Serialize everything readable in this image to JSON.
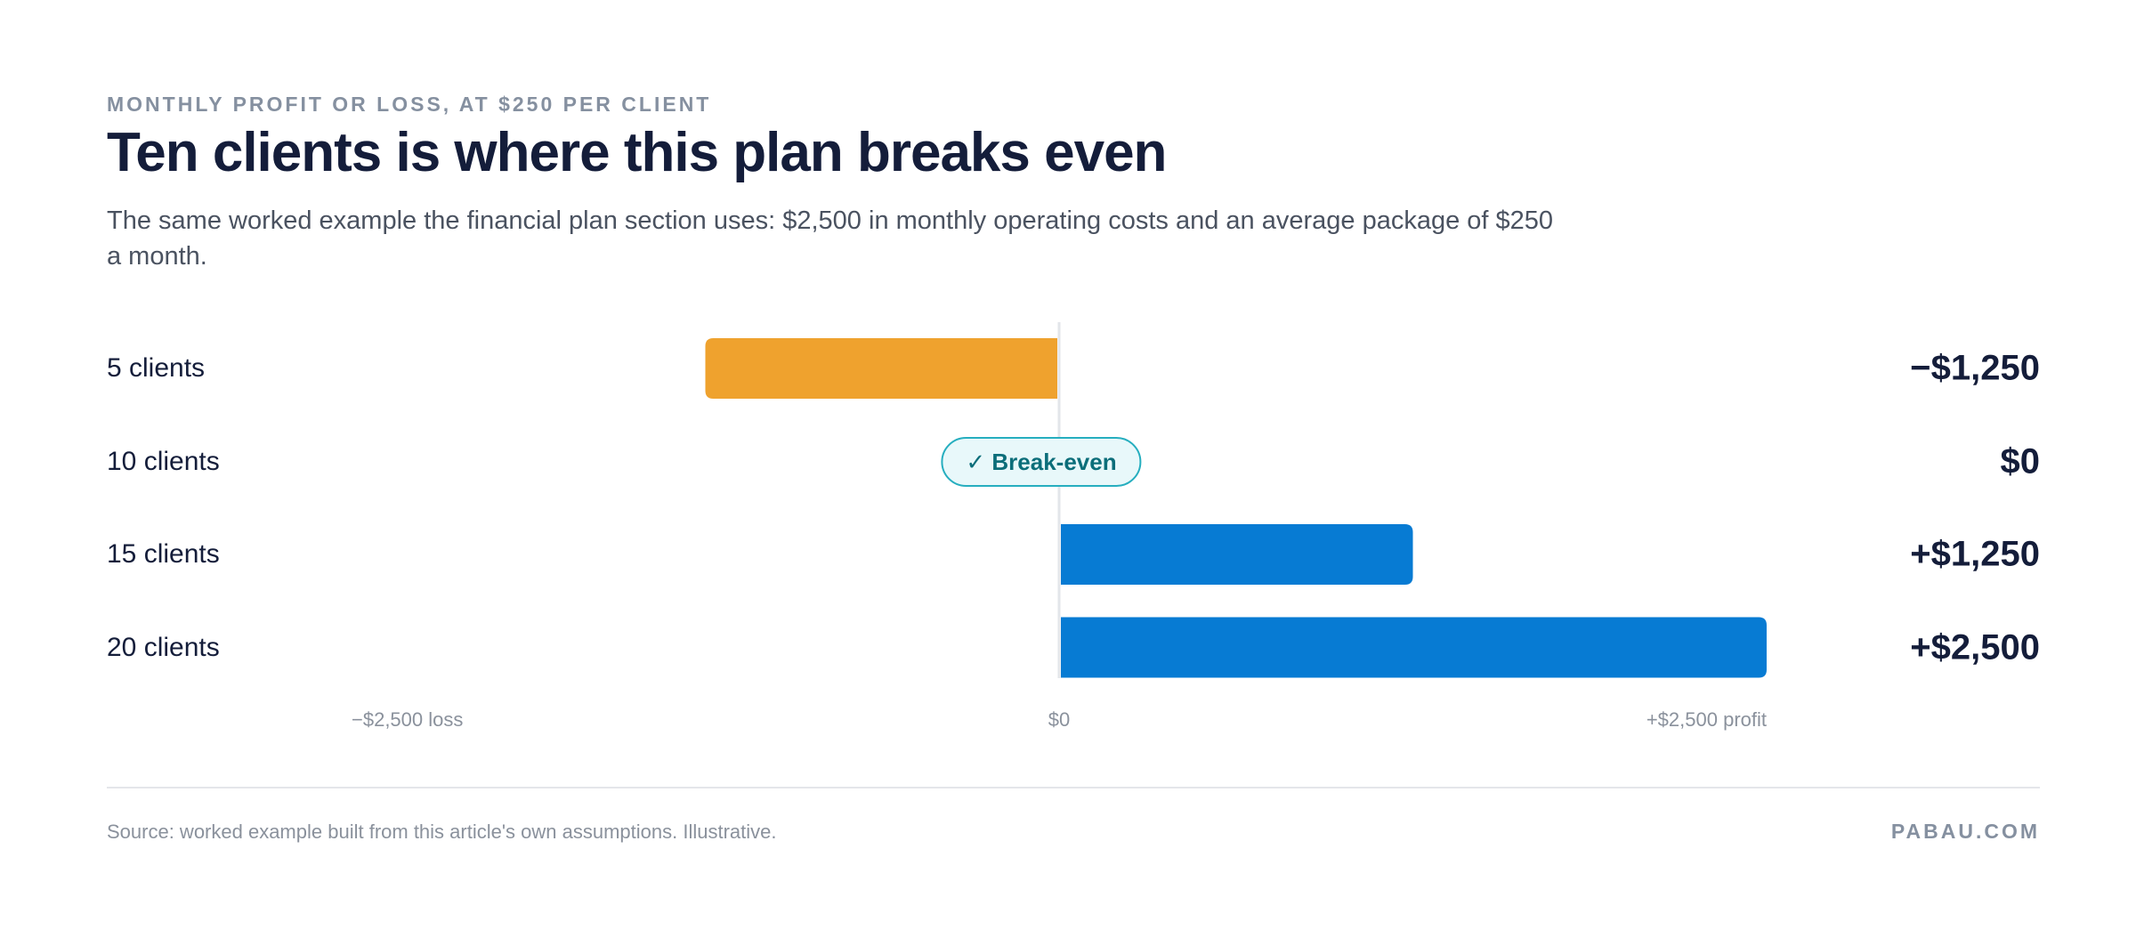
{
  "header": {
    "eyebrow": "MONTHLY PROFIT OR LOSS, AT $250 PER CLIENT",
    "title": "Ten clients is where this plan breaks even",
    "subtitle": "The same worked example the financial plan section uses: $2,500 in monthly operating costs and an average package of $250 a month."
  },
  "chart_data": {
    "type": "bar",
    "orientation": "horizontal",
    "categories": [
      "5 clients",
      "10 clients",
      "15 clients",
      "20 clients"
    ],
    "values": [
      -1250,
      0,
      1250,
      2500
    ],
    "value_labels": [
      "−$1,250",
      "$0",
      "+$1,250",
      "+$2,500"
    ],
    "xlim": [
      -2500,
      2500
    ],
    "x_ticks": [
      {
        "value": -2500,
        "label": "−$2,500 loss"
      },
      {
        "value": 0,
        "label": "$0"
      },
      {
        "value": 2500,
        "label": "+$2,500 profit"
      }
    ],
    "colors": {
      "negative": "#efa22e",
      "positive": "#077bd3",
      "zero_line": "#e3e6ea"
    },
    "annotation": {
      "category": "10 clients",
      "text": "✓ Break-even"
    },
    "grid": false,
    "legend": "none"
  },
  "footer": {
    "source": "Source: worked example built from this article's own assumptions. Illustrative.",
    "brand": "PABAU.COM"
  }
}
